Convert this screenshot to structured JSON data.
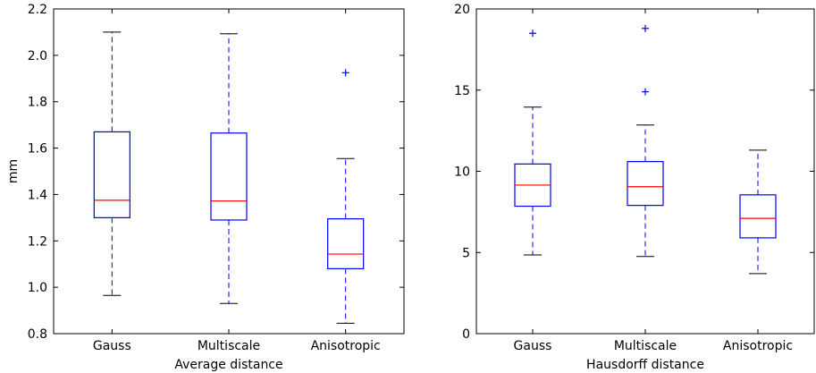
{
  "chart_data": [
    {
      "type": "box",
      "title": "",
      "xlabel": "Average distance",
      "ylabel": "mm",
      "categories": [
        "Gauss",
        "Multiscale",
        "Anisotropic"
      ],
      "ylim": [
        0.8,
        2.2
      ],
      "yticks": [
        0.8,
        1.0,
        1.2,
        1.4,
        1.6,
        1.8,
        2.0,
        2.2
      ],
      "ytick_labels": [
        "0.8",
        "1.0",
        "1.2",
        "1.4",
        "1.6",
        "1.8",
        "2.0",
        "2.2"
      ],
      "boxes": [
        {
          "category": "Gauss",
          "whisker_low": 0.965,
          "q1": 1.3,
          "median": 1.375,
          "q3": 1.67,
          "whisker_high": 2.1,
          "outliers": []
        },
        {
          "category": "Multiscale",
          "whisker_low": 0.93,
          "q1": 1.29,
          "median": 1.372,
          "q3": 1.665,
          "whisker_high": 2.093,
          "outliers": []
        },
        {
          "category": "Anisotropic",
          "whisker_low": 0.845,
          "q1": 1.08,
          "median": 1.143,
          "q3": 1.295,
          "whisker_high": 1.555,
          "outliers": [
            1.925
          ]
        }
      ],
      "grid": false,
      "colors": {
        "box": "#0000ff",
        "median": "#ff0000",
        "whisker": "#0000ff",
        "cap": "#000000",
        "outlier": "#0000ff"
      }
    },
    {
      "type": "box",
      "title": "",
      "xlabel": "Hausdorff distance",
      "ylabel": "",
      "categories": [
        "Gauss",
        "Multiscale",
        "Anisotropic"
      ],
      "ylim": [
        0,
        20
      ],
      "yticks": [
        0,
        5,
        10,
        15,
        20
      ],
      "ytick_labels": [
        "0",
        "5",
        "10",
        "15",
        "20"
      ],
      "boxes": [
        {
          "category": "Gauss",
          "whisker_low": 4.85,
          "q1": 7.85,
          "median": 9.15,
          "q3": 10.45,
          "whisker_high": 13.95,
          "outliers": [
            18.5
          ]
        },
        {
          "category": "Multiscale",
          "whisker_low": 4.75,
          "q1": 7.9,
          "median": 9.05,
          "q3": 10.6,
          "whisker_high": 12.85,
          "outliers": [
            14.9,
            18.8
          ]
        },
        {
          "category": "Anisotropic",
          "whisker_low": 3.7,
          "q1": 5.9,
          "median": 7.1,
          "q3": 8.55,
          "whisker_high": 11.3,
          "outliers": []
        }
      ],
      "grid": false,
      "colors": {
        "box": "#0000ff",
        "median": "#ff0000",
        "whisker": "#0000ff",
        "cap": "#000000",
        "outlier": "#0000ff"
      }
    }
  ]
}
